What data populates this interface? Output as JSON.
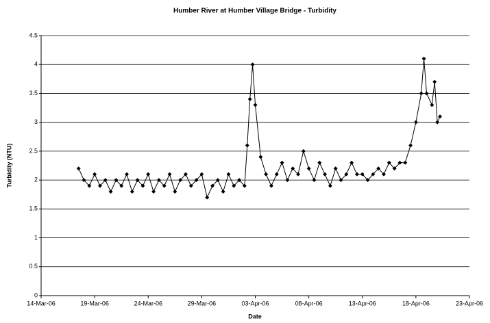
{
  "chart_data": {
    "type": "line",
    "title": "Humber River at Humber Village Bridge - Turbidity",
    "xlabel": "Date",
    "ylabel": "Turbidity (NTU)",
    "x": [
      "2006-03-17T12:00",
      "2006-03-18T00:00",
      "2006-03-18T12:00",
      "2006-03-19T00:00",
      "2006-03-19T12:00",
      "2006-03-20T00:00",
      "2006-03-20T12:00",
      "2006-03-21T00:00",
      "2006-03-21T12:00",
      "2006-03-22T00:00",
      "2006-03-22T12:00",
      "2006-03-23T00:00",
      "2006-03-23T12:00",
      "2006-03-24T00:00",
      "2006-03-24T12:00",
      "2006-03-25T00:00",
      "2006-03-25T12:00",
      "2006-03-26T00:00",
      "2006-03-26T12:00",
      "2006-03-27T00:00",
      "2006-03-27T12:00",
      "2006-03-28T00:00",
      "2006-03-28T12:00",
      "2006-03-29T00:00",
      "2006-03-29T12:00",
      "2006-03-30T00:00",
      "2006-03-30T12:00",
      "2006-03-31T00:00",
      "2006-03-31T12:00",
      "2006-04-01T00:00",
      "2006-04-01T12:00",
      "2006-04-02T00:00",
      "2006-04-02T06:00",
      "2006-04-02T12:00",
      "2006-04-02T18:00",
      "2006-04-03T00:00",
      "2006-04-03T12:00",
      "2006-04-04T00:00",
      "2006-04-04T12:00",
      "2006-04-05T00:00",
      "2006-04-05T12:00",
      "2006-04-06T00:00",
      "2006-04-06T12:00",
      "2006-04-07T00:00",
      "2006-04-07T12:00",
      "2006-04-08T00:00",
      "2006-04-08T12:00",
      "2006-04-09T00:00",
      "2006-04-09T12:00",
      "2006-04-10T00:00",
      "2006-04-10T12:00",
      "2006-04-11T00:00",
      "2006-04-11T12:00",
      "2006-04-12T00:00",
      "2006-04-12T12:00",
      "2006-04-13T00:00",
      "2006-04-13T12:00",
      "2006-04-14T00:00",
      "2006-04-14T12:00",
      "2006-04-15T00:00",
      "2006-04-15T12:00",
      "2006-04-16T00:00",
      "2006-04-16T12:00",
      "2006-04-17T00:00",
      "2006-04-17T12:00",
      "2006-04-18T00:00",
      "2006-04-18T12:00",
      "2006-04-18T18:00",
      "2006-04-19T00:00",
      "2006-04-19T12:00",
      "2006-04-19T18:00",
      "2006-04-20T00:00",
      "2006-04-20T06:00"
    ],
    "values": [
      2.2,
      2.0,
      1.9,
      2.1,
      1.9,
      2.0,
      1.8,
      2.0,
      1.9,
      2.1,
      1.8,
      2.0,
      1.9,
      2.1,
      1.8,
      2.0,
      1.9,
      2.1,
      1.8,
      2.0,
      2.1,
      1.9,
      2.0,
      2.1,
      1.7,
      1.9,
      2.0,
      1.8,
      2.1,
      1.9,
      2.0,
      1.9,
      2.6,
      3.4,
      4.0,
      3.3,
      2.4,
      2.1,
      1.9,
      2.1,
      2.3,
      2.0,
      2.2,
      2.1,
      2.5,
      2.2,
      2.0,
      2.3,
      2.1,
      1.9,
      2.2,
      2.0,
      2.1,
      2.3,
      2.1,
      2.1,
      2.0,
      2.1,
      2.2,
      2.1,
      2.3,
      2.2,
      2.3,
      2.3,
      2.6,
      3.0,
      3.5,
      4.1,
      3.5,
      3.3,
      3.7,
      3.0,
      3.1
    ],
    "color": "#000000",
    "xlim": [
      "2006-03-14T00:00",
      "2006-04-23T00:00"
    ],
    "xticks": [
      {
        "value": "2006-03-14T00:00",
        "label": "14-Mar-06"
      },
      {
        "value": "2006-03-19T00:00",
        "label": "19-Mar-06"
      },
      {
        "value": "2006-03-24T00:00",
        "label": "24-Mar-06"
      },
      {
        "value": "2006-03-29T00:00",
        "label": "29-Mar-06"
      },
      {
        "value": "2006-04-03T00:00",
        "label": "03-Apr-06"
      },
      {
        "value": "2006-04-08T00:00",
        "label": "08-Apr-06"
      },
      {
        "value": "2006-04-13T00:00",
        "label": "13-Apr-06"
      },
      {
        "value": "2006-04-18T00:00",
        "label": "18-Apr-06"
      },
      {
        "value": "2006-04-23T00:00",
        "label": "23-Apr-06"
      }
    ],
    "ylim": [
      0,
      4.5
    ],
    "yticks": [
      0,
      0.5,
      1,
      1.5,
      2,
      2.5,
      3,
      3.5,
      4,
      4.5
    ],
    "grid": true
  }
}
